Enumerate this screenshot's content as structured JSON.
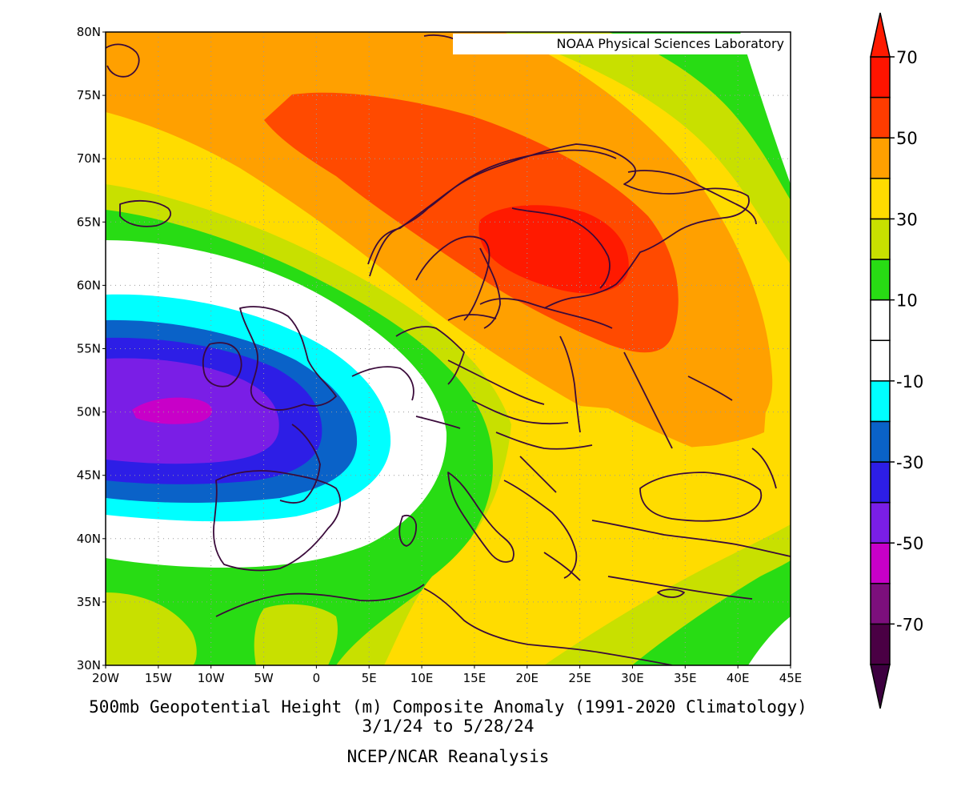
{
  "credit": "NOAA Physical Sciences Laboratory",
  "title_line1": "500mb Geopotential Height (m) Composite Anomaly (1991-2020 Climatology)",
  "title_line2": "3/1/24  to 5/28/24",
  "title_line3": "NCEP/NCAR Reanalysis",
  "map": {
    "lon_range": [
      -20,
      45
    ],
    "lat_range": [
      30,
      80
    ],
    "lat_ticks": [
      "30N",
      "35N",
      "40N",
      "45N",
      "50N",
      "55N",
      "60N",
      "65N",
      "70N",
      "75N",
      "80N"
    ],
    "lon_ticks": [
      "20W",
      "15W",
      "10W",
      "5W",
      "0",
      "5E",
      "10E",
      "15E",
      "20E",
      "25E",
      "30E",
      "35E",
      "40E",
      "45E"
    ],
    "grid": "dotted"
  },
  "colorbar": {
    "labels": [
      "70",
      "50",
      "30",
      "10",
      "-10",
      "-30",
      "-50",
      "-70"
    ],
    "colors": [
      "#4a0044",
      "#7c0f7c",
      "#c800c8",
      "#7a1ee6",
      "#2d1ee6",
      "#0a62c8",
      "#00ffff",
      "#ffffff",
      "#ffffff",
      "#28dc14",
      "#c8e000",
      "#ffdc00",
      "#ffa000",
      "#ff3c00",
      "#ff1400"
    ],
    "arrow_low": "#3d0040",
    "arrow_high": "#ff1a00"
  },
  "palette": {
    "yellow": "#ffdc00",
    "orange": "#ffa000",
    "red_orange": "#ff4a00",
    "red": "#ff1a00",
    "lime": "#c8e000",
    "green": "#28dc14",
    "white": "#ffffff",
    "cyan": "#00ffff",
    "blue": "#0a62c8",
    "dark_blue": "#2d1ee6",
    "violet": "#7a1ee6",
    "magenta": "#c800c8",
    "coast": "#3a0a3a"
  }
}
